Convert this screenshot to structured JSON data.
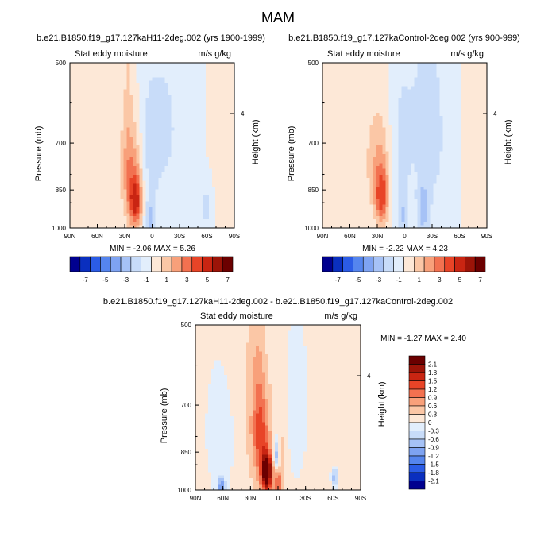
{
  "figure": {
    "title": "MAM"
  },
  "chart_data": [
    {
      "id": "top-left",
      "type": "heatmap",
      "title": "b.e21.B1850.f19_g17.127kaH11-2deg.002 (yrs 1900-1999)",
      "left_label": "Stat eddy moisture",
      "right_label": "m/s g/kg",
      "ylabel": "Pressure (mb)",
      "y2label": "Height (km)",
      "x_ticks": [
        "90N",
        "60N",
        "30N",
        "0",
        "30S",
        "60S",
        "90S"
      ],
      "y_ticks": [
        "500",
        "700",
        "850",
        "1000"
      ],
      "y2_ticks": [
        "4"
      ],
      "minmax_text": "MIN =  -2.06   MAX =    5.26",
      "min": -2.06,
      "max": 5.26,
      "features": [
        {
          "lat": 18,
          "p": 900,
          "v": 5.26,
          "sx": 5,
          "sp": 65
        },
        {
          "lat": 22,
          "p": 780,
          "v": 2.2,
          "sx": 8,
          "sp": 90
        },
        {
          "lat": 26,
          "p": 610,
          "v": 0.85,
          "sx": 4,
          "sp": 200
        },
        {
          "lat": 60,
          "p": 780,
          "v": 0.55,
          "sx": 30,
          "sp": 320
        },
        {
          "lat": -70,
          "p": 650,
          "v": 0.5,
          "sx": 12,
          "sp": 400
        },
        {
          "lat": 5,
          "p": 760,
          "v": -1.0,
          "sx": 7,
          "sp": 200
        },
        {
          "lat": -8,
          "p": 650,
          "v": -0.8,
          "sx": 12,
          "sp": 300
        },
        {
          "lat": -35,
          "p": 680,
          "v": -0.9,
          "sx": 18,
          "sp": 350
        },
        {
          "lat": -60,
          "p": 920,
          "v": -1.3,
          "sx": 6,
          "sp": 80
        },
        {
          "lat": 2,
          "p": 960,
          "v": -2.06,
          "sx": 3,
          "sp": 40
        }
      ]
    },
    {
      "id": "top-right",
      "type": "heatmap",
      "title": "b.e21.B1850.f19_g17.127kaControl-2deg.002 (yrs 900-999)",
      "left_label": "Stat eddy moisture",
      "right_label": "m/s g/kg",
      "ylabel": "Pressure (mb)",
      "y2label": "Height (km)",
      "x_ticks": [
        "90N",
        "60N",
        "30N",
        "0",
        "30S",
        "60S",
        "90S"
      ],
      "y_ticks": [
        "500",
        "700",
        "850",
        "1000"
      ],
      "y2_ticks": [
        "4"
      ],
      "minmax_text": "MIN =  -2.22   MAX =    4.23",
      "min": -2.22,
      "max": 4.23,
      "features": [
        {
          "lat": 25,
          "p": 880,
          "v": 4.23,
          "sx": 5,
          "sp": 70
        },
        {
          "lat": 28,
          "p": 760,
          "v": 1.8,
          "sx": 8,
          "sp": 100
        },
        {
          "lat": 62,
          "p": 700,
          "v": 0.55,
          "sx": 25,
          "sp": 300
        },
        {
          "lat": -75,
          "p": 700,
          "v": 0.5,
          "sx": 10,
          "sp": 350
        },
        {
          "lat": 5,
          "p": 740,
          "v": -1.0,
          "sx": 8,
          "sp": 200
        },
        {
          "lat": -15,
          "p": 620,
          "v": -0.8,
          "sx": 15,
          "sp": 250
        },
        {
          "lat": -38,
          "p": 700,
          "v": -0.9,
          "sx": 18,
          "sp": 350
        },
        {
          "lat": -20,
          "p": 920,
          "v": -2.22,
          "sx": 4,
          "sp": 70
        },
        {
          "lat": 2,
          "p": 960,
          "v": -1.6,
          "sx": 3,
          "sp": 50
        }
      ]
    },
    {
      "id": "bottom",
      "type": "heatmap",
      "title": "b.e21.B1850.f19_g17.127kaH11-2deg.002 - b.e21.B1850.f19_g17.127kaControl-2deg.002",
      "left_label": "Stat eddy moisture",
      "right_label": "m/s g/kg",
      "ylabel": "Pressure (mb)",
      "y2label": "Height (km)",
      "x_ticks": [
        "90N",
        "60N",
        "30N",
        "0",
        "30S",
        "60S",
        "90S"
      ],
      "y_ticks": [
        "500",
        "700",
        "850",
        "1000"
      ],
      "y2_ticks": [
        "4"
      ],
      "minmax_text": "MIN =  -1.27   MAX =    2.40",
      "min": -1.27,
      "max": 2.4,
      "features": [
        {
          "lat": 12,
          "p": 930,
          "v": 2.4,
          "sx": 4,
          "sp": 55
        },
        {
          "lat": 18,
          "p": 810,
          "v": 1.0,
          "sx": 7,
          "sp": 110
        },
        {
          "lat": 22,
          "p": 650,
          "v": 0.45,
          "sx": 6,
          "sp": 160
        },
        {
          "lat": 0,
          "p": 975,
          "v": 1.2,
          "sx": 3,
          "sp": 35
        },
        {
          "lat": -5,
          "p": 870,
          "v": 0.5,
          "sx": 3,
          "sp": 60
        },
        {
          "lat": 40,
          "p": 700,
          "v": 0.25,
          "sx": 15,
          "sp": 250
        },
        {
          "lat": -55,
          "p": 700,
          "v": 0.2,
          "sx": 30,
          "sp": 300
        },
        {
          "lat": 2,
          "p": 860,
          "v": -0.9,
          "sx": 2.5,
          "sp": 40
        },
        {
          "lat": -22,
          "p": 700,
          "v": -0.35,
          "sx": 10,
          "sp": 200
        },
        {
          "lat": 55,
          "p": 780,
          "v": -0.3,
          "sx": 15,
          "sp": 180
        },
        {
          "lat": 62,
          "p": 985,
          "v": -1.27,
          "sx": 3,
          "sp": 25
        },
        {
          "lat": -62,
          "p": 950,
          "v": -1.0,
          "sx": 3,
          "sp": 30
        }
      ]
    }
  ],
  "colorbars": {
    "shared": {
      "labels": [
        "-7",
        "-5",
        "-3",
        "-1",
        "1",
        "3",
        "5",
        "7"
      ],
      "levels": [
        -8,
        -7,
        -6,
        -5,
        -4,
        -3,
        -2,
        -1,
        0,
        1,
        2,
        3,
        4,
        5,
        6,
        7,
        8
      ],
      "colors": [
        "#00008f",
        "#0a2fbf",
        "#2b5ce6",
        "#5585ee",
        "#7ea3f2",
        "#a6c2f6",
        "#c8dcf9",
        "#e2eefc",
        "#fde8d7",
        "#fbc7a6",
        "#f8a07a",
        "#f27150",
        "#e84427",
        "#c92512",
        "#9c1408",
        "#6b0000"
      ]
    },
    "diff": {
      "labels": [
        "2.1",
        "1.8",
        "1.5",
        "1.2",
        "0.9",
        "0.6",
        "0.3",
        "0",
        "-0.3",
        "-0.6",
        "-0.9",
        "-1.2",
        "-1.5",
        "-1.8",
        "-2.1"
      ],
      "levels": [
        -2.4,
        -2.1,
        -1.8,
        -1.5,
        -1.2,
        -0.9,
        -0.6,
        -0.3,
        0,
        0.3,
        0.6,
        0.9,
        1.2,
        1.5,
        1.8,
        2.1,
        2.4
      ],
      "colors": [
        "#00008f",
        "#0a2fbf",
        "#2b5ce6",
        "#5585ee",
        "#7ea3f2",
        "#a6c2f6",
        "#c8dcf9",
        "#e2eefc",
        "#fde8d7",
        "#fbc7a6",
        "#f8a07a",
        "#f27150",
        "#e84427",
        "#c92512",
        "#9c1408",
        "#6b0000"
      ]
    }
  }
}
